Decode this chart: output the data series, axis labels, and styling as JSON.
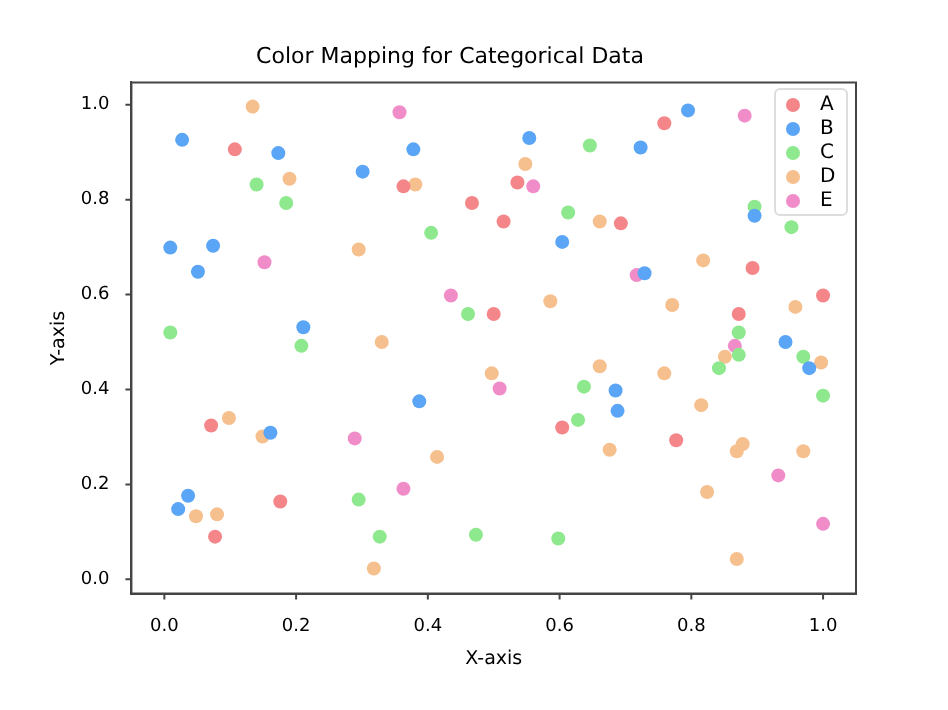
{
  "chart_data": {
    "type": "scatter",
    "title": "Color Mapping for Categorical Data",
    "xlabel": "X-axis",
    "ylabel": "Y-axis",
    "xlim": [
      -0.05,
      1.05
    ],
    "ylim": [
      -0.03,
      1.047
    ],
    "xticks": [
      {
        "value": 0,
        "label": "0.0"
      },
      {
        "value": 0.2,
        "label": "0.2"
      },
      {
        "value": 0.4,
        "label": "0.4"
      },
      {
        "value": 0.6,
        "label": "0.6"
      },
      {
        "value": 0.8,
        "label": "0.8"
      },
      {
        "value": 1,
        "label": "1.0"
      }
    ],
    "yticks": [
      {
        "value": 0,
        "label": "0.0"
      },
      {
        "value": 0.2,
        "label": "0.2"
      },
      {
        "value": 0.4,
        "label": "0.4"
      },
      {
        "value": 0.6,
        "label": "0.6"
      },
      {
        "value": 0.8,
        "label": "0.8"
      },
      {
        "value": 1,
        "label": "1.0"
      }
    ],
    "grid": false,
    "legend": "top right",
    "marker": "circle",
    "series": [
      {
        "name": "A",
        "color": "#f4868a",
        "x": [
          0.107,
          0.363,
          0.467,
          0.5,
          0.515,
          0.536,
          0.693,
          0.759,
          0.872,
          0.893,
          1.0,
          0.071,
          0.176,
          0.077,
          0.604,
          0.777
        ],
        "values": [
          0.906,
          0.828,
          0.793,
          0.559,
          0.754,
          0.836,
          0.75,
          0.961,
          0.559,
          0.656,
          0.598,
          0.324,
          0.164,
          0.09,
          0.32,
          0.293
        ]
      },
      {
        "name": "B",
        "color": "#5aa5f5",
        "x": [
          0.027,
          0.173,
          0.301,
          0.378,
          0.009,
          0.074,
          0.051,
          0.211,
          0.554,
          0.795,
          0.723,
          0.604,
          0.896,
          0.729,
          0.387,
          0.161,
          0.036,
          0.021,
          0.685,
          0.688,
          0.943,
          0.979
        ],
        "values": [
          0.926,
          0.898,
          0.859,
          0.906,
          0.699,
          0.703,
          0.648,
          0.531,
          0.93,
          0.988,
          0.91,
          0.711,
          0.766,
          0.645,
          0.375,
          0.309,
          0.176,
          0.148,
          0.398,
          0.355,
          0.5,
          0.445
        ]
      },
      {
        "name": "C",
        "color": "#8ee88e",
        "x": [
          0.14,
          0.185,
          0.405,
          0.461,
          0.009,
          0.646,
          0.613,
          0.896,
          0.952,
          0.872,
          0.208,
          0.295,
          0.327,
          0.473,
          0.872,
          0.842,
          0.97,
          1.0,
          0.637,
          0.628,
          0.598
        ],
        "values": [
          0.832,
          0.793,
          0.73,
          0.559,
          0.52,
          0.914,
          0.773,
          0.785,
          0.742,
          0.52,
          0.492,
          0.168,
          0.09,
          0.094,
          0.473,
          0.445,
          0.469,
          0.387,
          0.406,
          0.336,
          0.086
        ]
      },
      {
        "name": "D",
        "color": "#f6c08e",
        "x": [
          0.134,
          0.19,
          0.381,
          0.295,
          0.548,
          0.661,
          0.818,
          0.586,
          0.771,
          0.958,
          0.33,
          0.098,
          0.149,
          0.497,
          0.414,
          0.048,
          0.08,
          0.318,
          0.661,
          0.759,
          0.851,
          0.997,
          0.815,
          0.676,
          0.878,
          0.869,
          0.97,
          0.824,
          0.869
        ],
        "values": [
          0.996,
          0.844,
          0.832,
          0.695,
          0.875,
          0.754,
          0.672,
          0.586,
          0.578,
          0.574,
          0.5,
          0.34,
          0.301,
          0.434,
          0.258,
          0.133,
          0.137,
          0.023,
          0.449,
          0.434,
          0.469,
          0.457,
          0.367,
          0.273,
          0.285,
          0.27,
          0.27,
          0.184,
          0.043
        ]
      },
      {
        "name": "E",
        "color": "#f08cc8",
        "x": [
          0.357,
          0.152,
          0.435,
          0.881,
          0.56,
          0.717,
          0.509,
          0.289,
          0.363,
          0.866,
          0.932,
          1.0
        ],
        "values": [
          0.984,
          0.668,
          0.598,
          0.977,
          0.828,
          0.641,
          0.402,
          0.297,
          0.191,
          0.492,
          0.219,
          0.117
        ]
      }
    ]
  }
}
